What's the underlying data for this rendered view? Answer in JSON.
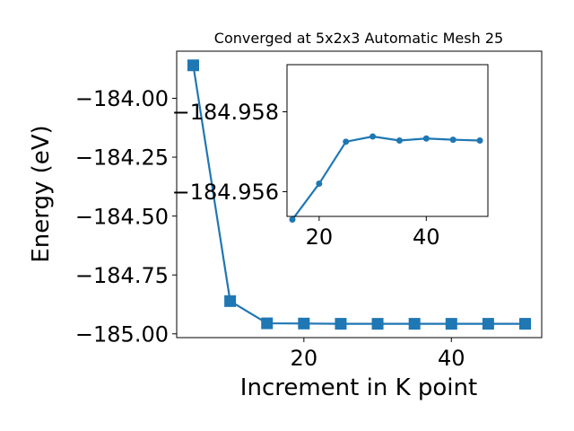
{
  "chart_data": [
    {
      "type": "line",
      "title": "Converged at 5x2x3 Automatic Mesh 25",
      "xlabel": "Increment in K point",
      "ylabel": "Energy (eV)",
      "x": [
        5,
        10,
        15,
        20,
        25,
        30,
        35,
        40,
        45,
        50
      ],
      "series": [
        {
          "values": [
            -183.86,
            -184.861,
            -184.9553,
            -184.9562,
            -184.95725,
            -184.95738,
            -184.95728,
            -184.95733,
            -184.9573,
            -184.95728
          ]
        }
      ],
      "xlim": [
        2.75,
        52.25
      ],
      "ylim": [
        -185.016,
        -183.8
      ],
      "xticks": [
        20,
        40
      ],
      "xtick_labels": [
        "20",
        "40"
      ],
      "yticks": [
        -185.0,
        -184.75,
        -184.5,
        -184.25,
        -184.0
      ],
      "ytick_labels": [
        "−185.00",
        "−184.75",
        "−184.50",
        "−184.25",
        "−184.00"
      ],
      "marker": "square",
      "color": "#1f77b4",
      "grid": false
    },
    {
      "type": "line",
      "title": "",
      "xlabel": "",
      "ylabel": "",
      "x": [
        15,
        20,
        25,
        30,
        35,
        40,
        45,
        50
      ],
      "series": [
        {
          "values": [
            -184.9553,
            -184.9562,
            -184.95725,
            -184.95738,
            -184.95728,
            -184.95733,
            -184.9573,
            -184.95728
          ]
        }
      ],
      "xlim": [
        14.0,
        51.5
      ],
      "ylim": [
        -184.95538,
        -184.95918
      ],
      "xticks": [
        20,
        40
      ],
      "xtick_labels": [
        "20",
        "40"
      ],
      "yticks": [
        -184.956,
        -184.958
      ],
      "ytick_labels": [
        "−184.956",
        "−184.958"
      ],
      "marker": "circle",
      "color": "#1f77b4",
      "grid": false
    }
  ]
}
